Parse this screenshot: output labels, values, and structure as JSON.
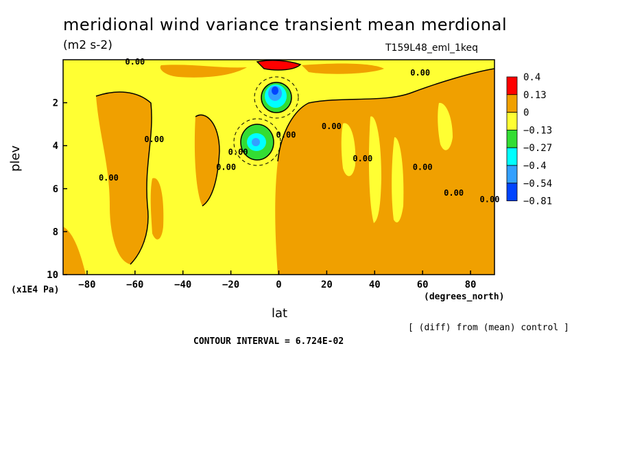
{
  "header": {
    "title": "meridional wind variance transient mean merdional",
    "units": "(m2 s-2)",
    "run_id": "T159L48_eml_1keq"
  },
  "footer": {
    "diff_note": "[ (diff) from (mean) control ]",
    "contour_interval": "CONTOUR INTERVAL = 6.724E-02"
  },
  "chart_data": {
    "type": "heatmap",
    "title": "meridional wind variance transient mean merdional",
    "subtitle": "(m2 s-2)",
    "xlabel": "lat",
    "xunit": "(degrees_north)",
    "ylabel": "plev",
    "yunit": "(x1E4 Pa)",
    "xlim": [
      -90,
      90
    ],
    "ylim": [
      10,
      0
    ],
    "x_ticks": [
      -80,
      -60,
      -40,
      -20,
      0,
      20,
      40,
      60,
      80
    ],
    "x_tick_labels": [
      "−80",
      "−60",
      "−40",
      "−20",
      "0",
      "20",
      "40",
      "60",
      "80"
    ],
    "y_ticks": [
      2,
      4,
      6,
      8,
      10
    ],
    "y_tick_labels": [
      "2",
      "4",
      "6",
      "8",
      "10"
    ],
    "contour_labels": [
      "0.00",
      "0.00",
      "0.00",
      "0.00",
      "0.00",
      "0.00",
      "0.00",
      "0.00",
      "0.00",
      "0.00",
      "0.00",
      "0.00"
    ],
    "legend": {
      "labels": [
        "0.4",
        "0.13",
        "0",
        "−0.13",
        "−0.27",
        "−0.4",
        "−0.54",
        "−0.81"
      ],
      "colors": [
        "#ff0000",
        "#f0a000",
        "#ffff33",
        "#33dd33",
        "#00ffff",
        "#33a0ff",
        "#0044ff"
      ]
    },
    "features": [
      {
        "name": "negative core",
        "lat": -1,
        "plev": 1.6,
        "value": -0.81
      },
      {
        "name": "negative core",
        "lat": -10,
        "plev": 3.9,
        "value": -0.54
      },
      {
        "name": "positive core",
        "lat": 0,
        "plev": 0.2,
        "value": 0.4
      }
    ]
  },
  "colors": {
    "positive_high": "#ff0000",
    "positive": "#f0a000",
    "neutral": "#ffff33",
    "negative": "#33dd33",
    "negative_strong": "#00ffff",
    "negative_stronger": "#33a0ff",
    "negative_max": "#0044ff"
  }
}
